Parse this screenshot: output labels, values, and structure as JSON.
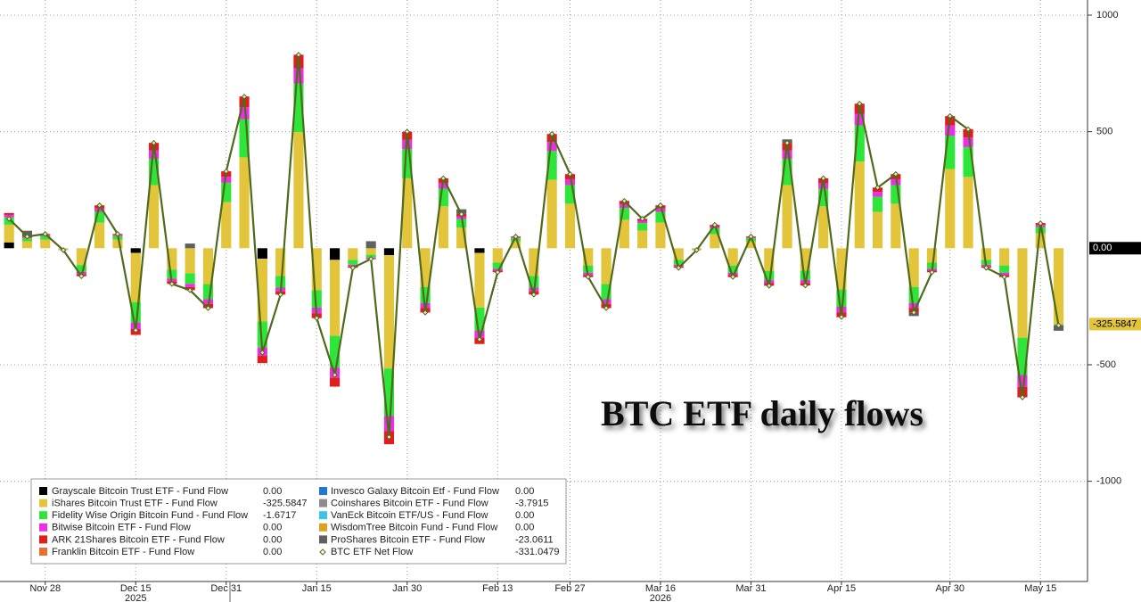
{
  "chart_data": {
    "type": "bar",
    "stacked": true,
    "annotation": "BTC ETF daily flows",
    "categories": [
      null,
      null,
      "Nov 28",
      null,
      null,
      null,
      null,
      "Dec 15",
      null,
      null,
      null,
      null,
      "Dec 31",
      null,
      null,
      null,
      null,
      "Jan 15",
      null,
      null,
      null,
      null,
      "Jan 30",
      null,
      null,
      null,
      null,
      "Feb 13",
      null,
      null,
      null,
      "Feb 27",
      null,
      null,
      null,
      null,
      "Mar 16",
      null,
      null,
      null,
      null,
      "Mar 31",
      null,
      null,
      null,
      null,
      "Apr 15",
      null,
      null,
      null,
      null,
      null,
      "Apr 30",
      null,
      null,
      null,
      null,
      "May 15",
      null
    ],
    "year_labels": [
      "2025",
      "2026"
    ],
    "ylim": [
      -1430,
      1065
    ],
    "yticks": [
      -1000,
      -500,
      500,
      1000
    ],
    "grid": true,
    "series": [
      {
        "name": "Grayscale Bitcoin Trust ETF - Fund Flow",
        "color": "#000000",
        "latest_label": "0.00",
        "values": [
          25,
          0,
          0,
          0,
          0,
          0,
          0,
          -20,
          0,
          0,
          0,
          0,
          0,
          0,
          -45,
          0,
          0,
          0,
          -50,
          0,
          0,
          -30,
          0,
          0,
          0,
          0,
          -20,
          0,
          0,
          0,
          0,
          0,
          0,
          0,
          0,
          0,
          0,
          0,
          0,
          0,
          0,
          0,
          0,
          0,
          0,
          0,
          0,
          0,
          0,
          0,
          0,
          0,
          0,
          0,
          0,
          0,
          0,
          0,
          0
        ]
      },
      {
        "name": "iShares Bitcoin Trust ETF - Fund Flow",
        "color": "#e3c53c",
        "latest_label": "-325.5847",
        "values": [
          76,
          30,
          37,
          -5,
          -72,
          110,
          37,
          -211,
          271,
          -92,
          -108,
          -154,
          198,
          390,
          -269,
          -119,
          498,
          -180,
          -326,
          -50,
          -28,
          -486,
          300,
          -166,
          180,
          88,
          -235,
          -62,
          30,
          -119,
          294,
          191,
          -74,
          -154,
          122,
          76,
          110,
          -50,
          -5,
          60,
          -74,
          30,
          -97,
          271,
          -96,
          180,
          -177,
          372,
          156,
          191,
          -166,
          -62,
          340,
          306,
          -50,
          -74,
          -384,
          64,
          -325.5847
        ]
      },
      {
        "name": "Fidelity Wise Origin Bitcoin Fund - Fund Flow",
        "color": "#2ee63a",
        "latest_label": "-1.6717",
        "values": [
          32,
          13,
          15,
          -2,
          -30,
          46,
          15,
          -88,
          113,
          -38,
          -45,
          -64,
          83,
          163,
          -112,
          -50,
          208,
          -75,
          -136,
          -21,
          -12,
          -203,
          125,
          -69,
          75,
          37,
          -98,
          -26,
          13,
          -50,
          123,
          80,
          -31,
          -64,
          51,
          32,
          46,
          -21,
          -2,
          25,
          -31,
          13,
          -40,
          113,
          -40,
          75,
          -74,
          155,
          65,
          80,
          -69,
          -26,
          142,
          128,
          -21,
          -31,
          -160,
          27,
          -1.6717
        ]
      },
      {
        "name": "Bitwise Bitcoin ETF - Fund Flow",
        "color": "#ee2ee6",
        "latest_label": "0.00",
        "values": [
          10,
          4,
          5,
          -1,
          -10,
          15,
          5,
          -28,
          36,
          -12,
          -14,
          -21,
          26,
          52,
          -36,
          -16,
          66,
          -24,
          -44,
          -7,
          -4,
          -65,
          40,
          -22,
          24,
          12,
          -31,
          -8,
          4,
          -16,
          39,
          25,
          -10,
          -21,
          16,
          10,
          15,
          -7,
          -1,
          8,
          -10,
          4,
          -13,
          36,
          -13,
          24,
          -24,
          50,
          21,
          25,
          -22,
          -8,
          45,
          41,
          -7,
          -10,
          -51,
          9,
          0
        ]
      },
      {
        "name": "ARK 21Shares Bitcoin ETF - Fund Flow",
        "color": "#e31c1c",
        "latest_label": "0.00",
        "values": [
          8,
          3,
          4,
          0,
          -8,
          13,
          4,
          -25,
          32,
          -11,
          -13,
          -18,
          23,
          46,
          -31,
          -14,
          58,
          -21,
          -38,
          -6,
          -3,
          -57,
          35,
          -19,
          21,
          10,
          -27,
          -7,
          3,
          -14,
          34,
          22,
          -9,
          -18,
          14,
          8,
          13,
          -6,
          0,
          7,
          -9,
          3,
          -11,
          32,
          -11,
          21,
          -21,
          43,
          18,
          22,
          -19,
          -7,
          40,
          36,
          -6,
          -9,
          -45,
          8,
          0
        ]
      },
      {
        "name": "Franklin Bitcoin ETF - Fund Flow",
        "color": "#e8702e",
        "latest_label": "0.00",
        "values": [
          0,
          0,
          0,
          0,
          0,
          0,
          0,
          0,
          0,
          0,
          0,
          0,
          0,
          0,
          0,
          0,
          0,
          0,
          0,
          0,
          0,
          0,
          0,
          0,
          0,
          0,
          0,
          0,
          0,
          0,
          0,
          0,
          0,
          0,
          0,
          0,
          0,
          0,
          0,
          0,
          0,
          0,
          0,
          0,
          0,
          0,
          0,
          0,
          0,
          0,
          0,
          0,
          0,
          0,
          0,
          0,
          0,
          0,
          0
        ]
      },
      {
        "name": "Invesco Galaxy Bitcoin Etf - Fund Flow",
        "color": "#1f78d6",
        "latest_label": "0.00",
        "values": [
          0,
          0,
          0,
          0,
          0,
          0,
          0,
          0,
          0,
          0,
          0,
          0,
          0,
          0,
          0,
          0,
          0,
          0,
          0,
          0,
          0,
          0,
          0,
          0,
          0,
          0,
          0,
          0,
          0,
          0,
          0,
          0,
          0,
          0,
          0,
          0,
          0,
          0,
          0,
          0,
          0,
          0,
          0,
          0,
          0,
          0,
          0,
          0,
          0,
          0,
          0,
          0,
          0,
          0,
          0,
          0,
          0,
          0,
          0
        ]
      },
      {
        "name": "Coinshares Bitcoin ETF - Fund Flow",
        "color": "#8c8c8c",
        "latest_label": "-3.7915",
        "values": [
          0,
          0,
          0,
          0,
          0,
          0,
          0,
          0,
          0,
          0,
          0,
          0,
          0,
          0,
          0,
          0,
          0,
          0,
          0,
          0,
          0,
          0,
          0,
          0,
          0,
          0,
          0,
          0,
          0,
          0,
          0,
          0,
          0,
          0,
          0,
          0,
          0,
          0,
          0,
          0,
          0,
          0,
          0,
          0,
          0,
          0,
          0,
          0,
          0,
          0,
          0,
          0,
          0,
          0,
          0,
          0,
          0,
          0,
          -3.7915
        ]
      },
      {
        "name": "VanEck Bitcoin ETF/US - Fund Flow",
        "color": "#3ec3e8",
        "latest_label": "0.00",
        "values": [
          0,
          0,
          0,
          0,
          0,
          0,
          0,
          0,
          0,
          0,
          0,
          0,
          0,
          0,
          0,
          0,
          0,
          0,
          0,
          0,
          0,
          0,
          0,
          0,
          0,
          0,
          0,
          0,
          0,
          0,
          0,
          0,
          0,
          0,
          0,
          0,
          0,
          0,
          0,
          0,
          0,
          0,
          0,
          0,
          0,
          0,
          0,
          0,
          0,
          0,
          0,
          0,
          0,
          0,
          0,
          0,
          0,
          0,
          0
        ]
      },
      {
        "name": "WisdomTree Bitcoin Fund - Fund Flow",
        "color": "#e0a01e",
        "latest_label": "0.00",
        "values": [
          0,
          0,
          0,
          0,
          0,
          0,
          0,
          0,
          0,
          0,
          0,
          0,
          0,
          0,
          0,
          0,
          0,
          0,
          0,
          0,
          0,
          0,
          0,
          0,
          0,
          0,
          0,
          0,
          0,
          0,
          0,
          0,
          0,
          0,
          0,
          0,
          0,
          0,
          0,
          0,
          0,
          0,
          0,
          0,
          0,
          0,
          0,
          0,
          0,
          0,
          0,
          0,
          0,
          0,
          0,
          0,
          0,
          0,
          0
        ]
      },
      {
        "name": "ProShares Bitcoin ETF - Fund Flow",
        "color": "#606060",
        "latest_label": "-23.0611",
        "values": [
          0,
          25,
          0,
          0,
          0,
          0,
          0,
          0,
          0,
          0,
          20,
          0,
          0,
          0,
          0,
          0,
          0,
          0,
          0,
          0,
          30,
          0,
          0,
          0,
          0,
          20,
          0,
          0,
          0,
          0,
          0,
          0,
          0,
          0,
          0,
          0,
          0,
          0,
          0,
          0,
          0,
          0,
          0,
          15,
          0,
          0,
          0,
          0,
          0,
          0,
          -15,
          0,
          0,
          0,
          0,
          0,
          0,
          0,
          -23.0611
        ]
      },
      {
        "name": "BTC ETF Net Flow",
        "type": "line",
        "color": "#4f6a1c",
        "latest_label": "-331.0479",
        "values": [
          126,
          50,
          61,
          -8,
          -120,
          184,
          61,
          -352,
          452,
          -153,
          -180,
          -257,
          330,
          650,
          -448,
          -199,
          830,
          -300,
          -544,
          -84,
          -46,
          -810,
          500,
          -276,
          300,
          146,
          -391,
          -103,
          50,
          -199,
          490,
          318,
          -123,
          -257,
          203,
          126,
          184,
          -84,
          -8,
          100,
          -123,
          50,
          -161,
          452,
          -160,
          300,
          -295,
          620,
          260,
          318,
          -276,
          -103,
          567,
          510,
          -84,
          -123,
          -640,
          107,
          -331.0479
        ]
      }
    ]
  }
}
